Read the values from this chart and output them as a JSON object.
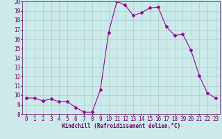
{
  "x": [
    0,
    1,
    2,
    3,
    4,
    5,
    6,
    7,
    8,
    9,
    10,
    11,
    12,
    13,
    14,
    15,
    16,
    17,
    18,
    19,
    20,
    21,
    22,
    23
  ],
  "y": [
    9.7,
    9.7,
    9.4,
    9.6,
    9.3,
    9.3,
    8.7,
    8.2,
    8.2,
    10.6,
    16.7,
    20.0,
    19.6,
    18.5,
    18.8,
    19.3,
    19.4,
    17.3,
    16.4,
    16.5,
    14.8,
    12.1,
    10.2,
    9.7
  ],
  "line_color": "#990099",
  "marker": "D",
  "marker_size": 2.0,
  "bg_color": "#cceaea",
  "grid_color": "#aacccc",
  "xlabel": "Windchill (Refroidissement éolien,°C)",
  "xlabel_color": "#660066",
  "tick_color": "#660066",
  "ylim": [
    8,
    20
  ],
  "xlim": [
    -0.5,
    23.5
  ],
  "yticks": [
    8,
    9,
    10,
    11,
    12,
    13,
    14,
    15,
    16,
    17,
    18,
    19,
    20
  ],
  "xticks": [
    0,
    1,
    2,
    3,
    4,
    5,
    6,
    7,
    8,
    9,
    10,
    11,
    12,
    13,
    14,
    15,
    16,
    17,
    18,
    19,
    20,
    21,
    22,
    23
  ],
  "label_fontsize": 5.5,
  "tick_fontsize": 5.5
}
